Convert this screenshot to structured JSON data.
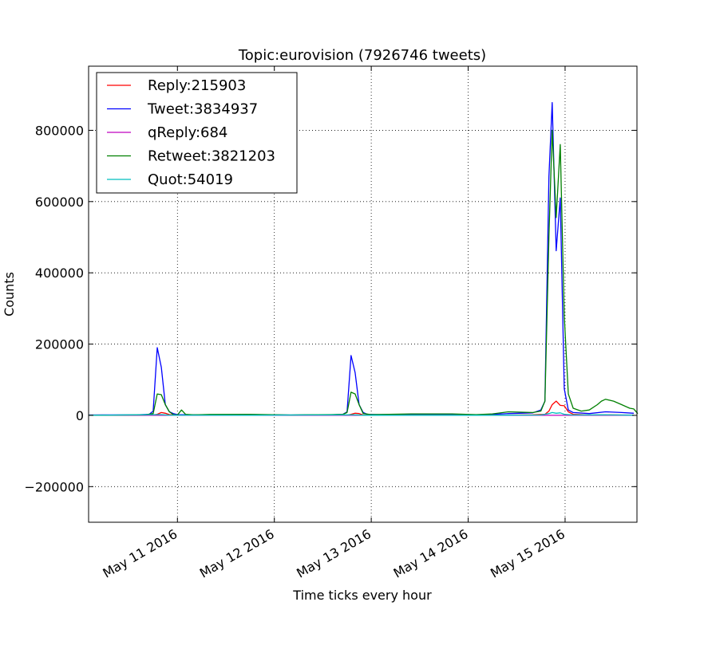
{
  "chart_data": {
    "type": "line",
    "title": "Topic:eurovision (7926746 tweets)",
    "xlabel": "Time ticks every hour",
    "ylabel": "Counts",
    "xlim": [
      0,
      135.8
    ],
    "ylim": [
      -300000,
      980000
    ],
    "grid": true,
    "legend_position": "top-left",
    "x_unit": "hours since 2016-05-10 02:00",
    "x_ticks": [
      {
        "x": 22,
        "label": "May 11 2016"
      },
      {
        "x": 46,
        "label": "May 12 2016"
      },
      {
        "x": 70,
        "label": "May 13 2016"
      },
      {
        "x": 94,
        "label": "May 14 2016"
      },
      {
        "x": 118,
        "label": "May 15 2016"
      }
    ],
    "y_ticks": [
      {
        "value": -200000,
        "label": "−200000"
      },
      {
        "value": 0,
        "label": "0"
      },
      {
        "value": 200000,
        "label": "200000"
      },
      {
        "value": 400000,
        "label": "400000"
      },
      {
        "value": 600000,
        "label": "600000"
      },
      {
        "value": 800000,
        "label": "800000"
      }
    ],
    "series": [
      {
        "name": "Reply:215903",
        "color": "#ff0000",
        "points": [
          [
            0,
            0
          ],
          [
            14,
            500
          ],
          [
            16,
            1000
          ],
          [
            17,
            3000
          ],
          [
            18,
            8000
          ],
          [
            19,
            6000
          ],
          [
            20,
            2000
          ],
          [
            22,
            300
          ],
          [
            28,
            500
          ],
          [
            40,
            500
          ],
          [
            60,
            300
          ],
          [
            64,
            500
          ],
          [
            65,
            3000
          ],
          [
            66,
            6000
          ],
          [
            67,
            5000
          ],
          [
            68,
            1000
          ],
          [
            70,
            300
          ],
          [
            90,
            500
          ],
          [
            100,
            300
          ],
          [
            110,
            1500
          ],
          [
            113,
            3000
          ],
          [
            114,
            12000
          ],
          [
            114.8,
            30000
          ],
          [
            115.8,
            40000
          ],
          [
            116.8,
            28000
          ],
          [
            117.8,
            27000
          ],
          [
            118.8,
            10000
          ],
          [
            120,
            3000
          ],
          [
            124,
            1000
          ],
          [
            128,
            1500
          ],
          [
            132,
            1000
          ],
          [
            135,
            500
          ]
        ]
      },
      {
        "name": "Tweet:3834937",
        "color": "#0000ff",
        "points": [
          [
            0,
            1000
          ],
          [
            12,
            1500
          ],
          [
            15,
            3000
          ],
          [
            16,
            12000
          ],
          [
            17,
            190000
          ],
          [
            18,
            135000
          ],
          [
            19,
            30000
          ],
          [
            20,
            10000
          ],
          [
            21,
            5000
          ],
          [
            22,
            2000
          ],
          [
            26,
            1500
          ],
          [
            40,
            2000
          ],
          [
            50,
            1000
          ],
          [
            60,
            1500
          ],
          [
            63,
            3000
          ],
          [
            64,
            10000
          ],
          [
            65,
            168000
          ],
          [
            66,
            120000
          ],
          [
            67,
            30000
          ],
          [
            68,
            8000
          ],
          [
            69,
            3000
          ],
          [
            72,
            2000
          ],
          [
            80,
            3000
          ],
          [
            90,
            2500
          ],
          [
            96,
            1500
          ],
          [
            100,
            3000
          ],
          [
            104,
            5000
          ],
          [
            110,
            7000
          ],
          [
            112,
            15000
          ],
          [
            113,
            40000
          ],
          [
            114,
            670000
          ],
          [
            114.8,
            878000
          ],
          [
            115.8,
            462000
          ],
          [
            116.8,
            610000
          ],
          [
            117.8,
            75000
          ],
          [
            118.8,
            15000
          ],
          [
            120,
            8000
          ],
          [
            124,
            5000
          ],
          [
            128,
            10000
          ],
          [
            132,
            8000
          ],
          [
            135,
            6000
          ]
        ]
      },
      {
        "name": "qReply:684",
        "color": "#bf00bf",
        "points": [
          [
            0,
            0
          ],
          [
            135,
            0
          ]
        ]
      },
      {
        "name": "Retweet:3821203",
        "color": "#008000",
        "points": [
          [
            0,
            0
          ],
          [
            14,
            1500
          ],
          [
            16,
            5000
          ],
          [
            17,
            60000
          ],
          [
            18,
            58000
          ],
          [
            19,
            30000
          ],
          [
            20,
            10000
          ],
          [
            21,
            2000
          ],
          [
            22,
            1000
          ],
          [
            23,
            15000
          ],
          [
            24,
            3000
          ],
          [
            26,
            1500
          ],
          [
            30,
            2500
          ],
          [
            40,
            3000
          ],
          [
            50,
            1000
          ],
          [
            60,
            2000
          ],
          [
            63,
            3000
          ],
          [
            64,
            8000
          ],
          [
            65,
            65000
          ],
          [
            66,
            60000
          ],
          [
            67,
            30000
          ],
          [
            68,
            5000
          ],
          [
            70,
            2000
          ],
          [
            80,
            4000
          ],
          [
            90,
            4000
          ],
          [
            96,
            2000
          ],
          [
            100,
            4000
          ],
          [
            104,
            10000
          ],
          [
            110,
            8000
          ],
          [
            112,
            12000
          ],
          [
            113,
            40000
          ],
          [
            114,
            500000
          ],
          [
            114.8,
            800000
          ],
          [
            115.8,
            555000
          ],
          [
            116.8,
            760000
          ],
          [
            117.8,
            280000
          ],
          [
            118.8,
            60000
          ],
          [
            120,
            20000
          ],
          [
            122,
            12000
          ],
          [
            124,
            15000
          ],
          [
            126,
            30000
          ],
          [
            127,
            40000
          ],
          [
            128,
            45000
          ],
          [
            130,
            40000
          ],
          [
            132,
            30000
          ],
          [
            134,
            20000
          ],
          [
            135,
            18000
          ],
          [
            136,
            5000
          ]
        ]
      },
      {
        "name": "Quot:54019",
        "color": "#00bfbf",
        "points": [
          [
            0,
            0
          ],
          [
            17,
            2000
          ],
          [
            18,
            2000
          ],
          [
            20,
            500
          ],
          [
            40,
            300
          ],
          [
            65,
            1500
          ],
          [
            66,
            1500
          ],
          [
            68,
            300
          ],
          [
            100,
            300
          ],
          [
            112,
            1000
          ],
          [
            114,
            5000
          ],
          [
            114.8,
            8000
          ],
          [
            115.8,
            6000
          ],
          [
            116.8,
            7000
          ],
          [
            117.8,
            3000
          ],
          [
            120,
            1000
          ],
          [
            128,
            1500
          ],
          [
            135,
            500
          ]
        ]
      }
    ]
  }
}
